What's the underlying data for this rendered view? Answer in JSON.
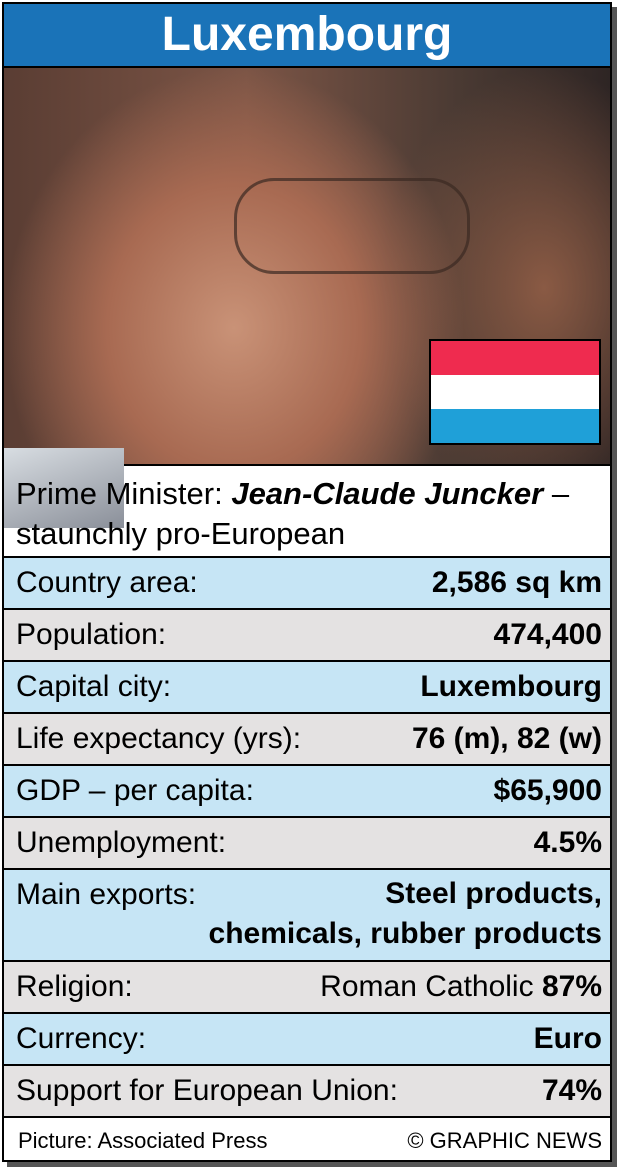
{
  "header": {
    "title": "Luxembourg"
  },
  "prime_minister": {
    "label": "Prime Minister:",
    "name": "Jean-Claude Juncker",
    "note": "– staunchly pro-European"
  },
  "facts": [
    {
      "label": "Country area:",
      "value": "2,586 sq km"
    },
    {
      "label": "Population:",
      "value": "474,400"
    },
    {
      "label": "Capital city:",
      "value": "Luxembourg"
    },
    {
      "label": "Life expectancy (yrs):",
      "value": "76 (m), 82 (w)"
    },
    {
      "label": "GDP – per capita:",
      "value": "$65,900"
    },
    {
      "label": "Unemployment:",
      "value": "4.5%"
    },
    {
      "label": "Main exports:",
      "value_lines": [
        "Steel products,",
        "chemicals, rubber products"
      ]
    },
    {
      "label": "Religion:",
      "value_text": "Roman Catholic",
      "value": "87%"
    },
    {
      "label": "Currency:",
      "value": "Euro"
    },
    {
      "label": "Support for European Union:",
      "value": "74%"
    }
  ],
  "footer": {
    "credit": "Picture: Associated Press",
    "copyright": "© GRAPHIC NEWS"
  }
}
